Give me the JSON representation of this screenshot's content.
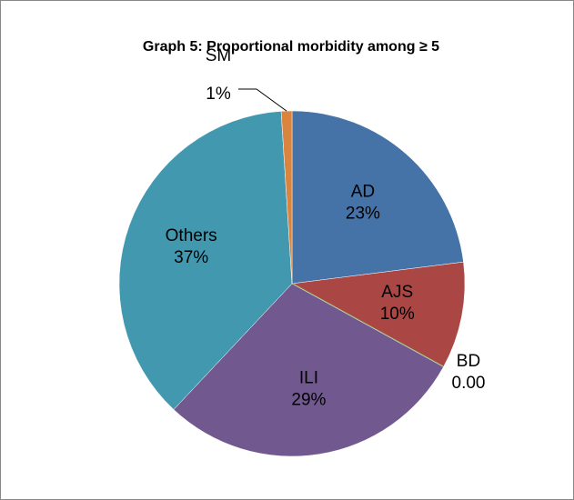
{
  "chart_data": {
    "type": "pie",
    "title": "Graph 5: Proportional morbidity among ≥ 5",
    "categories": [
      "AD",
      "AJS",
      "BD",
      "ILI",
      "Others",
      "SM"
    ],
    "values": [
      23,
      10,
      0,
      29,
      37,
      1
    ],
    "value_labels": [
      "23%",
      "10%",
      "0.00",
      "29%",
      "37%",
      "1%"
    ],
    "colors": [
      "#4572a7",
      "#aa4643",
      "#89a54e",
      "#71588f",
      "#4198af",
      "#db843d"
    ]
  }
}
